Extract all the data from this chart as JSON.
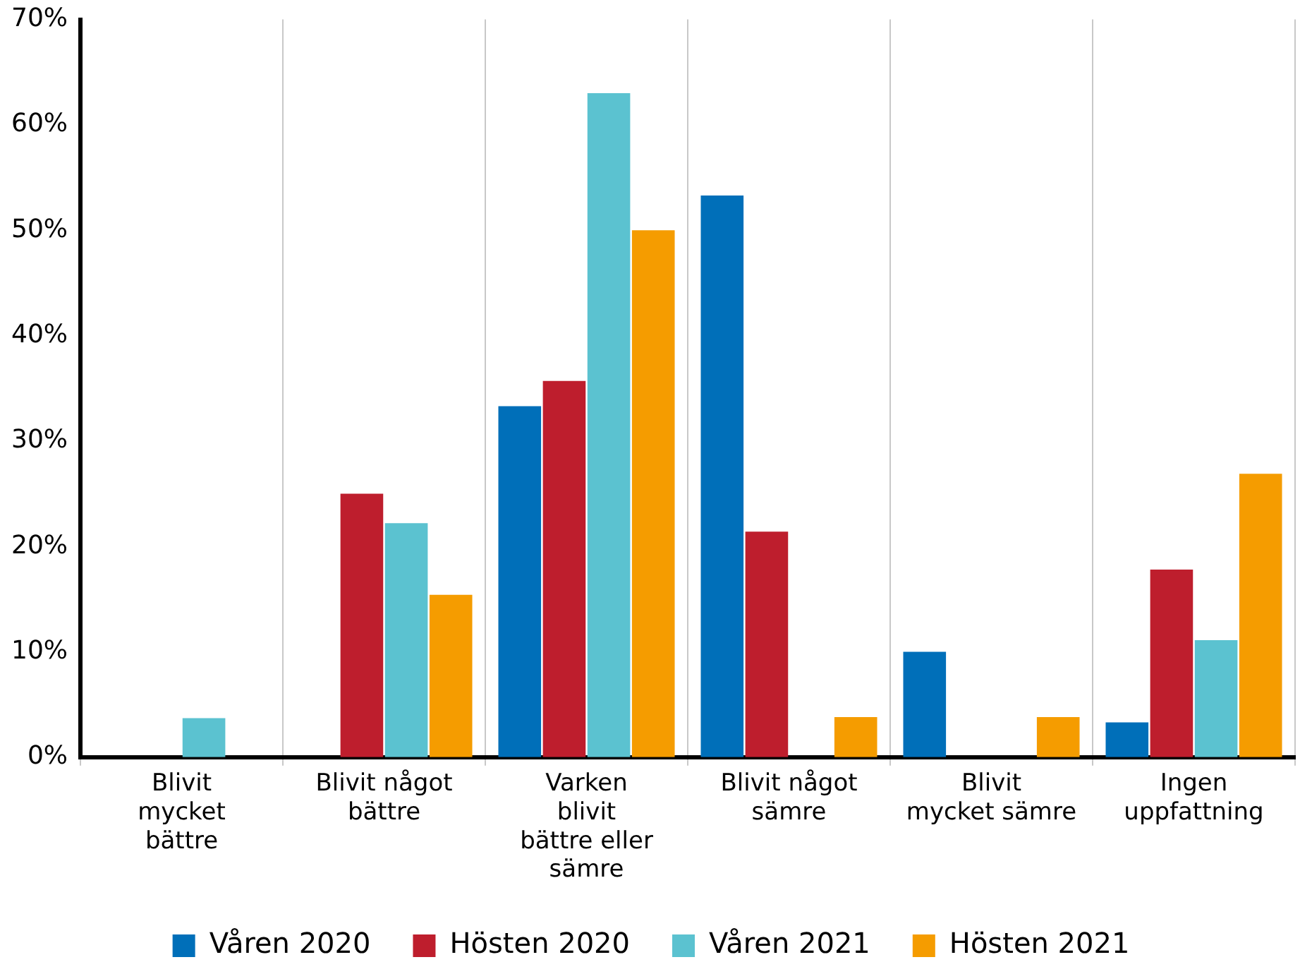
{
  "chart_data": {
    "type": "bar",
    "categories": [
      "Blivit mycket bättre",
      "Blivit något bättre",
      "Varken blivit bättre eller sämre",
      "Blivit något sämre",
      "Blivit mycket sämre",
      "Ingen uppfattning"
    ],
    "series": [
      {
        "name": "Våren 2020",
        "color": "#006fb9",
        "values": [
          0,
          0,
          33.3,
          53.3,
          10,
          3.3
        ]
      },
      {
        "name": "Hösten 2020",
        "color": "#be1e2d",
        "values": [
          0,
          25,
          35.7,
          21.4,
          0,
          17.8
        ]
      },
      {
        "name": "Våren 2021",
        "color": "#5bc2d0",
        "values": [
          3.7,
          22.2,
          63,
          0,
          0,
          11.1
        ]
      },
      {
        "name": "Hösten 2021",
        "color": "#f59c00",
        "values": [
          0,
          15.4,
          50,
          3.8,
          3.8,
          26.9
        ]
      }
    ],
    "ylim": [
      0,
      70
    ],
    "yticks": [
      {
        "value": 0,
        "label": "0%"
      },
      {
        "value": 10,
        "label": "10%"
      },
      {
        "value": 20,
        "label": "20%"
      },
      {
        "value": 30,
        "label": "30%"
      },
      {
        "value": 40,
        "label": "40%"
      },
      {
        "value": 50,
        "label": "50%"
      },
      {
        "value": 60,
        "label": "60%"
      },
      {
        "value": 70,
        "label": "70%"
      }
    ],
    "grid": "x",
    "legend": "bottom"
  }
}
